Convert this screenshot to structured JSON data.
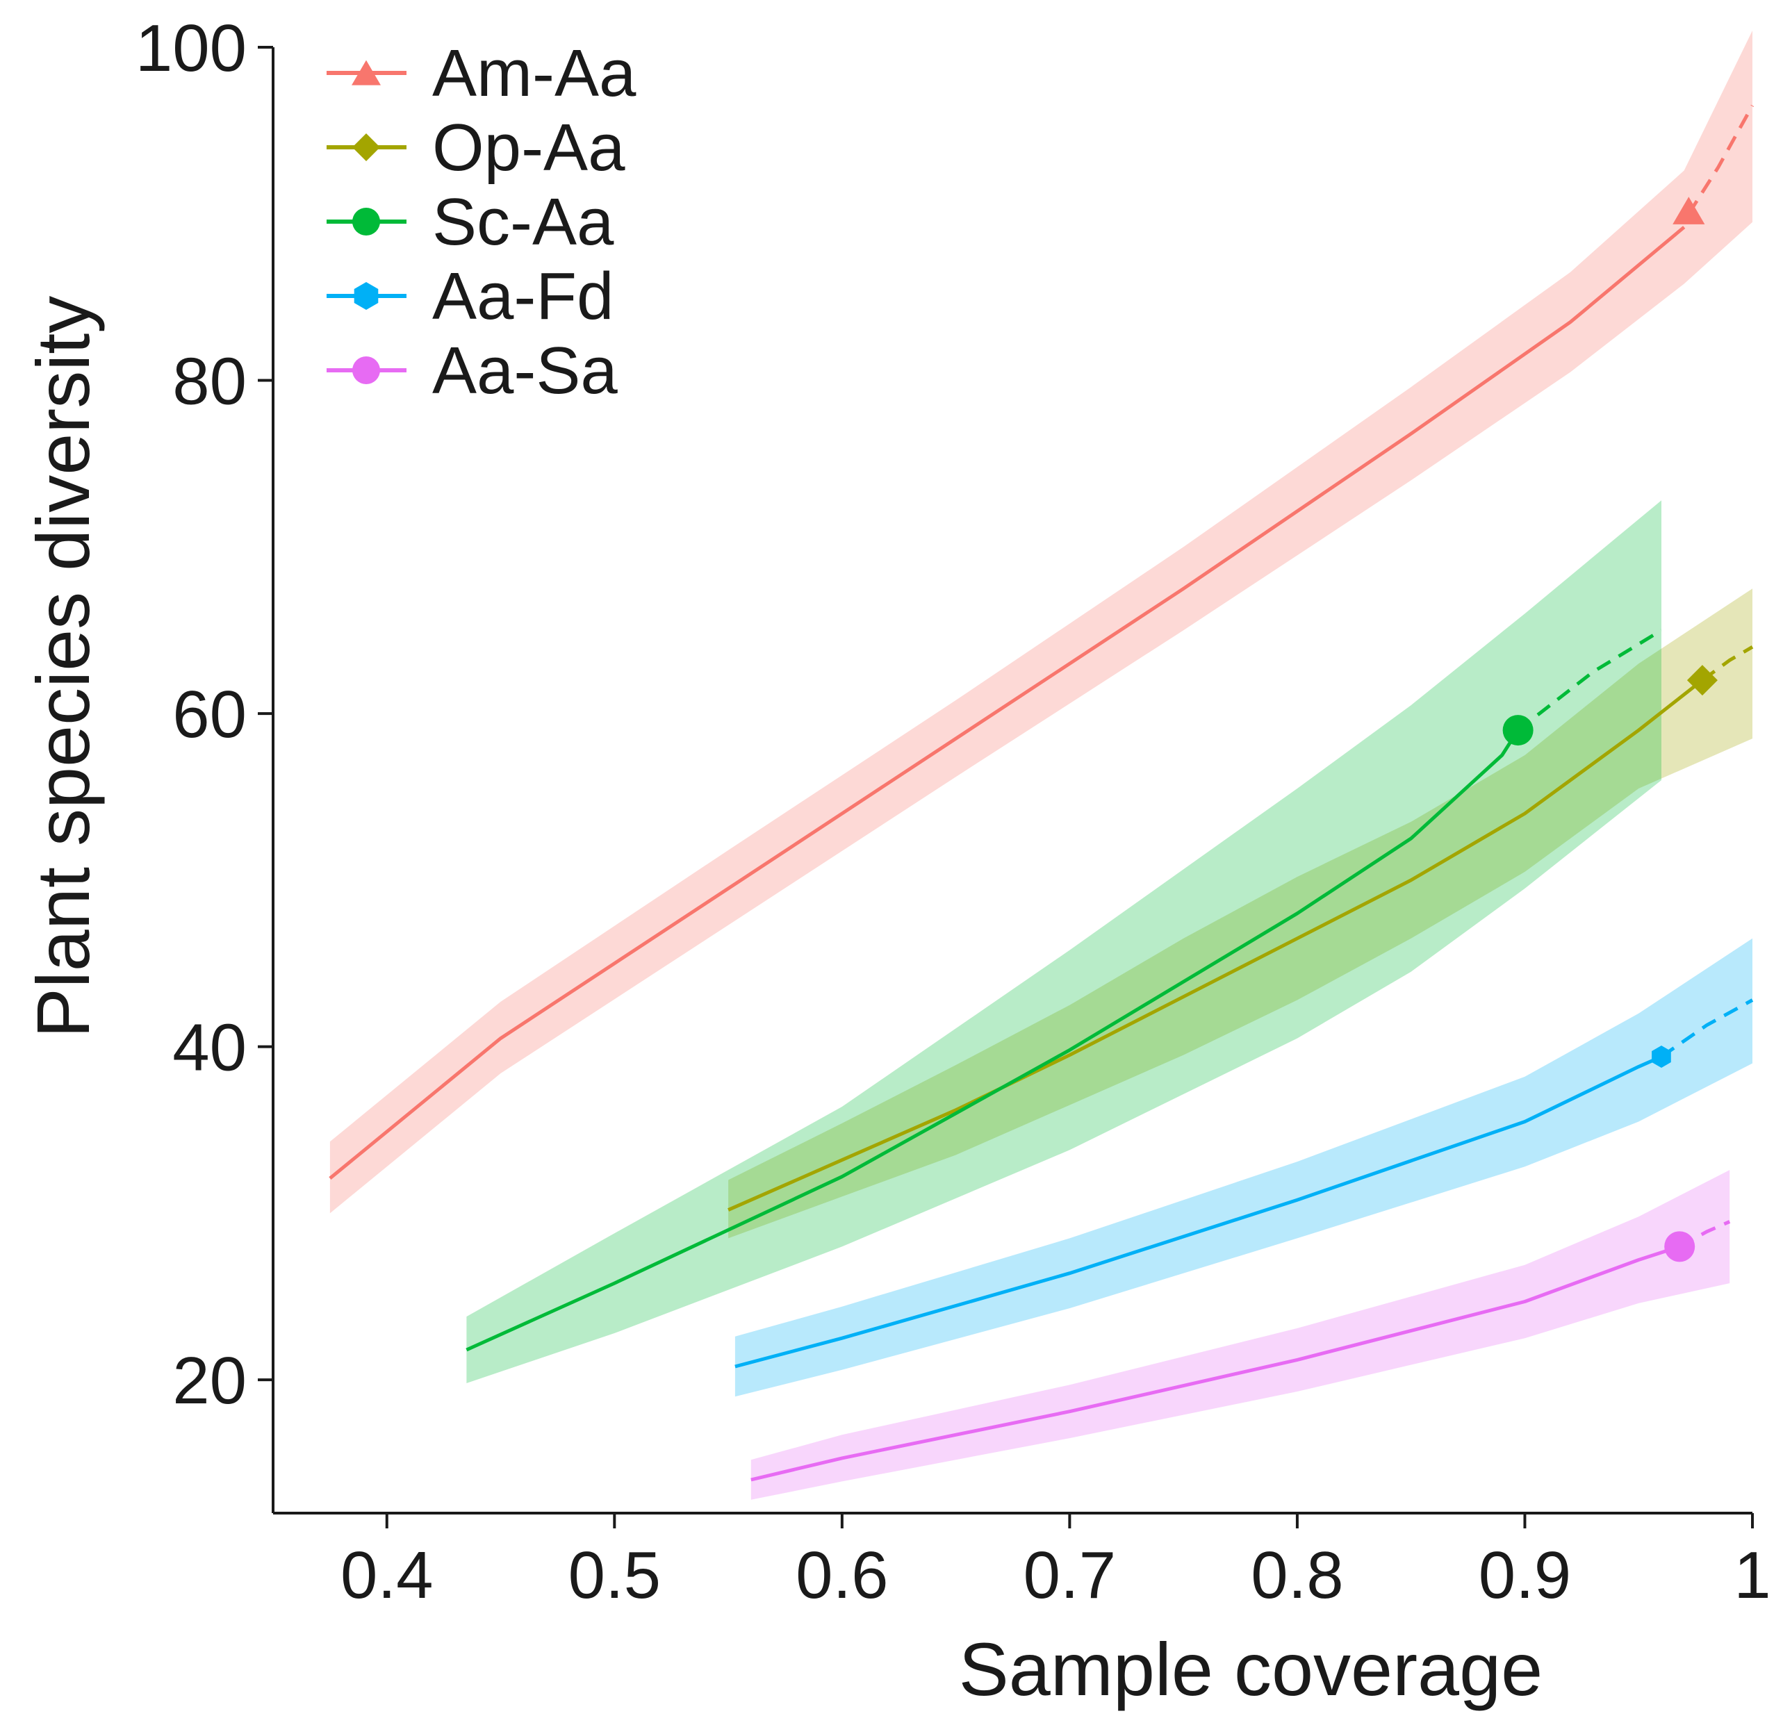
{
  "chart_data": {
    "type": "line",
    "title": "",
    "xlabel": "Sample coverage",
    "ylabel": "Plant species diversity",
    "xlim": [
      0.35,
      1.0
    ],
    "ylim": [
      12,
      100
    ],
    "xticks": [
      0.4,
      0.5,
      0.6,
      0.7,
      0.8,
      0.9,
      1.0
    ],
    "xtick_labels": [
      "0.4",
      "0.5",
      "0.6",
      "0.7",
      "0.8",
      "0.9",
      "1"
    ],
    "yticks": [
      20,
      40,
      60,
      80,
      100
    ],
    "ytick_labels": [
      "20",
      "40",
      "60",
      "80",
      "100"
    ],
    "legend_position": "top-left",
    "series": [
      {
        "name": "Am-Aa",
        "color": "#F8766D",
        "marker": "triangle",
        "interpolated": [
          [
            0.375,
            32.1
          ],
          [
            0.45,
            40.5
          ],
          [
            0.55,
            49.5
          ],
          [
            0.65,
            58.5
          ],
          [
            0.75,
            67.5
          ],
          [
            0.85,
            76.8
          ],
          [
            0.92,
            83.5
          ],
          [
            0.97,
            89.2
          ]
        ],
        "observed": [
          0.972,
          90.0
        ],
        "extrapolated": [
          [
            0.972,
            90.0
          ],
          [
            0.985,
            92.8
          ],
          [
            1.0,
            96.5
          ]
        ],
        "ci_lower": [
          [
            0.375,
            30.0
          ],
          [
            0.45,
            38.4
          ],
          [
            0.55,
            47.3
          ],
          [
            0.65,
            56.2
          ],
          [
            0.75,
            65.0
          ],
          [
            0.85,
            74.0
          ],
          [
            0.92,
            80.5
          ],
          [
            0.97,
            85.8
          ],
          [
            1.0,
            89.5
          ]
        ],
        "ci_upper": [
          [
            0.375,
            34.3
          ],
          [
            0.45,
            42.7
          ],
          [
            0.55,
            51.8
          ],
          [
            0.65,
            60.8
          ],
          [
            0.75,
            70.0
          ],
          [
            0.85,
            79.6
          ],
          [
            0.92,
            86.5
          ],
          [
            0.97,
            92.6
          ],
          [
            1.0,
            101.0
          ]
        ]
      },
      {
        "name": "Op-Aa",
        "color": "#A3A500",
        "marker": "diamond",
        "interpolated": [
          [
            0.55,
            30.2
          ],
          [
            0.6,
            33.2
          ],
          [
            0.65,
            36.2
          ],
          [
            0.7,
            39.5
          ],
          [
            0.75,
            43.0
          ],
          [
            0.8,
            46.5
          ],
          [
            0.85,
            50.0
          ],
          [
            0.9,
            54.0
          ],
          [
            0.95,
            59.0
          ],
          [
            0.978,
            62.0
          ]
        ],
        "observed": [
          0.978,
          62.0
        ],
        "extrapolated": [
          [
            0.978,
            62.0
          ],
          [
            0.99,
            63.2
          ],
          [
            1.0,
            64.0
          ]
        ],
        "ci_lower": [
          [
            0.55,
            28.5
          ],
          [
            0.6,
            31.0
          ],
          [
            0.65,
            33.5
          ],
          [
            0.7,
            36.5
          ],
          [
            0.75,
            39.5
          ],
          [
            0.8,
            42.8
          ],
          [
            0.85,
            46.5
          ],
          [
            0.9,
            50.5
          ],
          [
            0.95,
            55.5
          ],
          [
            1.0,
            58.5
          ]
        ],
        "ci_upper": [
          [
            0.55,
            32.0
          ],
          [
            0.6,
            35.4
          ],
          [
            0.65,
            38.9
          ],
          [
            0.7,
            42.5
          ],
          [
            0.75,
            46.5
          ],
          [
            0.8,
            50.2
          ],
          [
            0.85,
            53.5
          ],
          [
            0.9,
            57.5
          ],
          [
            0.95,
            63.0
          ],
          [
            1.0,
            67.5
          ]
        ]
      },
      {
        "name": "Sc-Aa",
        "color": "#00BA38",
        "marker": "circle",
        "interpolated": [
          [
            0.435,
            21.8
          ],
          [
            0.5,
            25.8
          ],
          [
            0.6,
            32.2
          ],
          [
            0.7,
            39.8
          ],
          [
            0.8,
            48.0
          ],
          [
            0.85,
            52.5
          ],
          [
            0.89,
            57.5
          ],
          [
            0.897,
            59.0
          ]
        ],
        "observed": [
          0.897,
          59.0
        ],
        "extrapolated": [
          [
            0.897,
            59.0
          ],
          [
            0.93,
            62.5
          ],
          [
            0.96,
            65.0
          ]
        ],
        "ci_lower": [
          [
            0.435,
            19.8
          ],
          [
            0.5,
            22.8
          ],
          [
            0.6,
            28.0
          ],
          [
            0.7,
            33.8
          ],
          [
            0.8,
            40.5
          ],
          [
            0.85,
            44.5
          ],
          [
            0.9,
            49.5
          ],
          [
            0.96,
            56.0
          ]
        ],
        "ci_upper": [
          [
            0.435,
            23.8
          ],
          [
            0.5,
            28.8
          ],
          [
            0.6,
            36.4
          ],
          [
            0.7,
            45.8
          ],
          [
            0.8,
            55.5
          ],
          [
            0.85,
            60.5
          ],
          [
            0.9,
            66.0
          ],
          [
            0.96,
            72.8
          ]
        ]
      },
      {
        "name": "Aa-Fd",
        "color": "#00B0F6",
        "marker": "hexagon",
        "interpolated": [
          [
            0.553,
            20.8
          ],
          [
            0.6,
            22.5
          ],
          [
            0.7,
            26.4
          ],
          [
            0.8,
            30.8
          ],
          [
            0.9,
            35.5
          ],
          [
            0.95,
            38.8
          ],
          [
            0.96,
            39.4
          ]
        ],
        "observed": [
          0.96,
          39.4
        ],
        "extrapolated": [
          [
            0.96,
            39.4
          ],
          [
            0.98,
            41.3
          ],
          [
            1.0,
            42.8
          ]
        ],
        "ci_lower": [
          [
            0.553,
            19.0
          ],
          [
            0.6,
            20.6
          ],
          [
            0.7,
            24.3
          ],
          [
            0.8,
            28.5
          ],
          [
            0.9,
            32.8
          ],
          [
            0.95,
            35.5
          ],
          [
            1.0,
            39.0
          ]
        ],
        "ci_upper": [
          [
            0.553,
            22.6
          ],
          [
            0.6,
            24.4
          ],
          [
            0.7,
            28.5
          ],
          [
            0.8,
            33.1
          ],
          [
            0.9,
            38.2
          ],
          [
            0.95,
            42.0
          ],
          [
            1.0,
            46.5
          ]
        ]
      },
      {
        "name": "Aa-Sa",
        "color": "#E76BF3",
        "marker": "circle",
        "interpolated": [
          [
            0.56,
            14.0
          ],
          [
            0.6,
            15.3
          ],
          [
            0.7,
            18.1
          ],
          [
            0.8,
            21.2
          ],
          [
            0.9,
            24.7
          ],
          [
            0.95,
            27.2
          ],
          [
            0.968,
            28.0
          ]
        ],
        "observed": [
          0.968,
          28.0
        ],
        "extrapolated": [
          [
            0.968,
            28.0
          ],
          [
            0.98,
            28.9
          ],
          [
            0.99,
            29.5
          ]
        ],
        "ci_lower": [
          [
            0.56,
            12.8
          ],
          [
            0.6,
            13.9
          ],
          [
            0.7,
            16.5
          ],
          [
            0.8,
            19.3
          ],
          [
            0.9,
            22.5
          ],
          [
            0.95,
            24.6
          ],
          [
            0.99,
            25.8
          ]
        ],
        "ci_upper": [
          [
            0.56,
            15.2
          ],
          [
            0.6,
            16.7
          ],
          [
            0.7,
            19.7
          ],
          [
            0.8,
            23.1
          ],
          [
            0.9,
            26.9
          ],
          [
            0.95,
            29.8
          ],
          [
            0.99,
            32.6
          ]
        ]
      }
    ]
  }
}
